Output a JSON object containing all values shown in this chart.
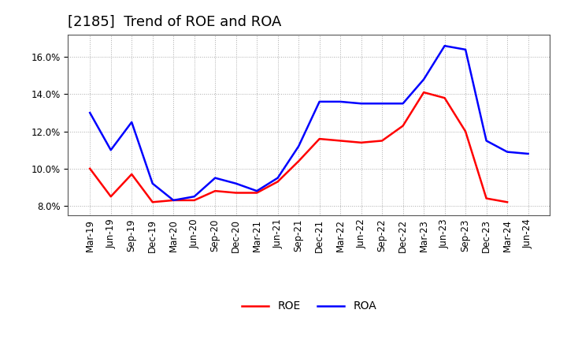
{
  "title": "[2185]  Trend of ROE and ROA",
  "labels": [
    "Mar-19",
    "Jun-19",
    "Sep-19",
    "Dec-19",
    "Mar-20",
    "Jun-20",
    "Sep-20",
    "Dec-20",
    "Mar-21",
    "Jun-21",
    "Sep-21",
    "Dec-21",
    "Mar-22",
    "Jun-22",
    "Sep-22",
    "Dec-22",
    "Mar-23",
    "Jun-23",
    "Sep-23",
    "Dec-23",
    "Mar-24",
    "Jun-24"
  ],
  "ROE": [
    10.0,
    8.5,
    9.7,
    8.2,
    8.3,
    8.3,
    8.8,
    8.7,
    8.7,
    9.3,
    10.4,
    11.6,
    11.5,
    11.4,
    11.5,
    12.3,
    14.1,
    13.8,
    12.0,
    8.4,
    8.2,
    null
  ],
  "ROA": [
    13.0,
    11.0,
    12.5,
    9.2,
    8.3,
    8.5,
    9.5,
    9.2,
    8.8,
    9.5,
    11.2,
    13.6,
    13.6,
    13.5,
    13.5,
    13.5,
    14.8,
    16.6,
    16.4,
    11.5,
    10.9,
    10.8
  ],
  "ROE_color": "#ff0000",
  "ROA_color": "#0000ff",
  "ylim": [
    7.5,
    17.2
  ],
  "yticks": [
    8.0,
    10.0,
    12.0,
    14.0,
    16.0
  ],
  "background_color": "#ffffff",
  "grid_color": "#aaaaaa",
  "title_fontsize": 13,
  "axis_fontsize": 8.5,
  "legend_fontsize": 10,
  "linewidth": 1.8
}
